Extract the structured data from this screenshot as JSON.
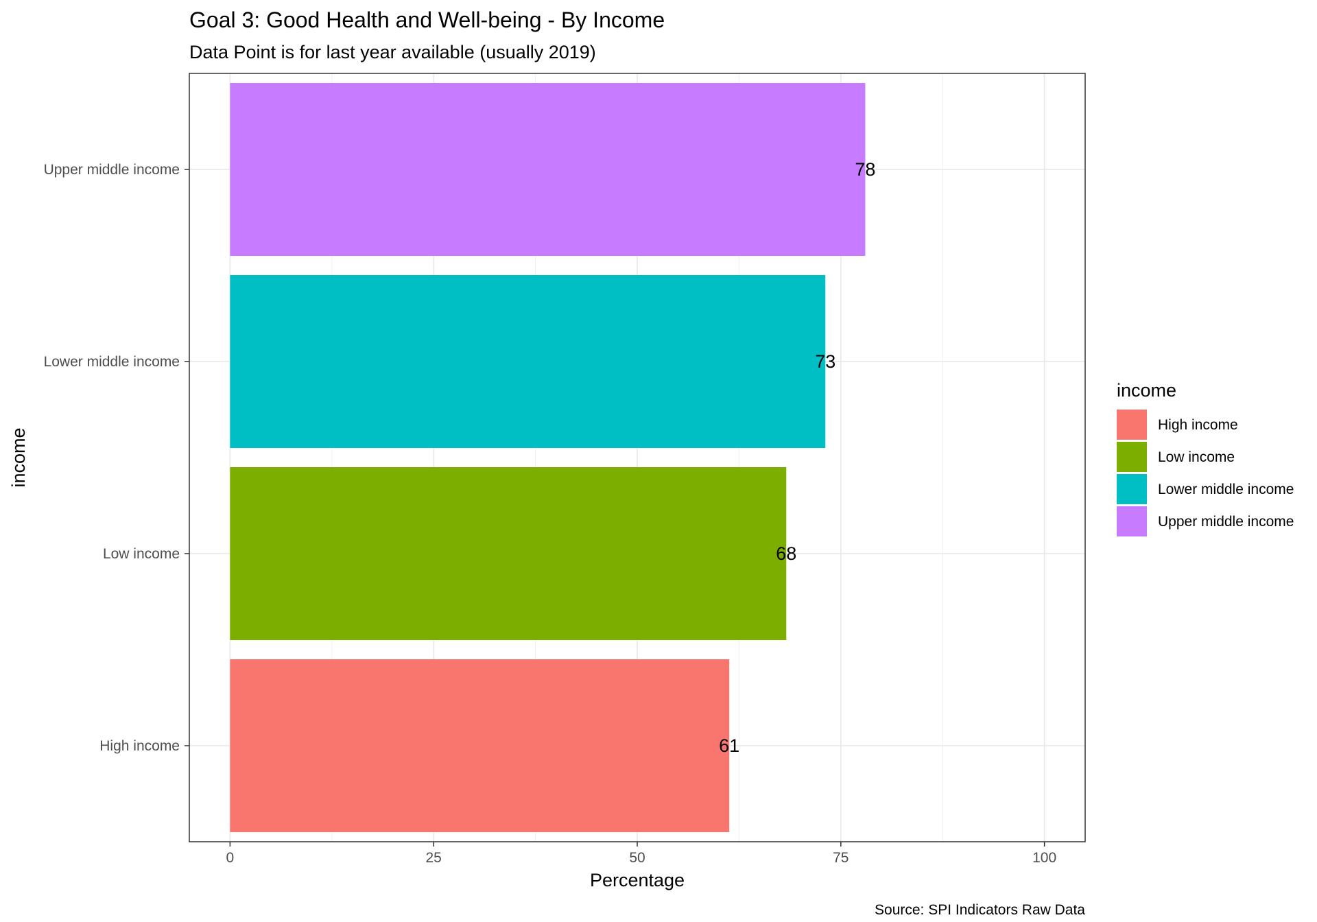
{
  "chart_data": {
    "type": "bar",
    "orientation": "horizontal",
    "title": "Goal 3: Good Health and Well-being - By Income",
    "subtitle": "Data Point is for last year available (usually 2019)",
    "xlabel": "Percentage",
    "ylabel": "income",
    "caption": "Source: SPI Indicators Raw Data",
    "categories": [
      "High income",
      "Low income",
      "Lower middle income",
      "Upper middle income"
    ],
    "values": [
      61.3,
      68.3,
      73.1,
      78.0
    ],
    "data_labels": [
      "61",
      "68",
      "73",
      "78"
    ],
    "colors": [
      "#F8766D",
      "#7CAE00",
      "#00BFC4",
      "#C77CFF"
    ],
    "xlim": [
      -5,
      105
    ],
    "xticks": [
      0,
      25,
      50,
      75,
      100
    ],
    "xtick_labels": [
      "0",
      "25",
      "50",
      "75",
      "100"
    ],
    "grid": true,
    "legend": {
      "title": "income",
      "position": "right",
      "items": [
        "High income",
        "Low income",
        "Lower middle income",
        "Upper middle income"
      ]
    }
  }
}
